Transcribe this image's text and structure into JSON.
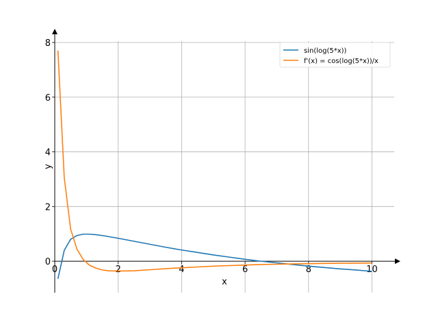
{
  "chart_data": {
    "type": "line",
    "xlabel": "x",
    "ylabel": "y",
    "xlim": [
      0,
      10.7
    ],
    "ylim": [
      -1.15,
      8.35
    ],
    "grid": true,
    "legend_position": "top-right",
    "x_ticks": [
      {
        "value": 0,
        "label": "0"
      },
      {
        "value": 2,
        "label": "2"
      },
      {
        "value": 4,
        "label": "4"
      },
      {
        "value": 6,
        "label": "6"
      },
      {
        "value": 8,
        "label": "8"
      },
      {
        "value": 10,
        "label": "10"
      }
    ],
    "y_ticks": [
      {
        "value": 0,
        "label": "0"
      },
      {
        "value": 2,
        "label": "2"
      },
      {
        "value": 4,
        "label": "4"
      },
      {
        "value": 6,
        "label": "6"
      },
      {
        "value": 8,
        "label": "8"
      }
    ],
    "series": [
      {
        "name": "sin(log(5*x))",
        "color": "#1f77b4",
        "x": [
          0.1,
          0.3,
          0.5,
          0.7,
          0.9,
          1.1,
          1.3,
          1.5,
          2.0,
          2.5,
          3.0,
          3.5,
          4.0,
          4.5,
          5.0,
          5.5,
          6.0,
          6.5,
          7.0,
          7.5,
          8.0,
          8.5,
          9.0,
          9.5,
          10.0
        ],
        "y": [
          -0.64,
          0.4,
          0.8,
          0.94,
          0.99,
          0.99,
          0.97,
          0.94,
          0.84,
          0.73,
          0.62,
          0.51,
          0.41,
          0.32,
          0.23,
          0.15,
          0.07,
          0.0,
          -0.06,
          -0.12,
          -0.18,
          -0.23,
          -0.28,
          -0.32,
          -0.37
        ]
      },
      {
        "name": "f'(x) = cos(log(5*x))/x",
        "color": "#ff7f0e",
        "x": [
          0.1,
          0.3,
          0.5,
          0.7,
          0.9,
          1.1,
          1.3,
          1.5,
          1.7,
          2.0,
          2.5,
          3.0,
          3.5,
          4.0,
          4.5,
          5.0,
          5.5,
          6.0,
          6.5,
          7.0,
          7.5,
          8.0,
          8.5,
          9.0,
          9.5,
          10.0
        ],
        "y": [
          7.7,
          3.05,
          1.18,
          0.44,
          0.06,
          -0.15,
          -0.25,
          -0.32,
          -0.35,
          -0.36,
          -0.35,
          -0.31,
          -0.27,
          -0.24,
          -0.21,
          -0.18,
          -0.16,
          -0.14,
          -0.12,
          -0.11,
          -0.1,
          -0.09,
          -0.08,
          -0.075,
          -0.07,
          -0.065
        ]
      }
    ]
  }
}
